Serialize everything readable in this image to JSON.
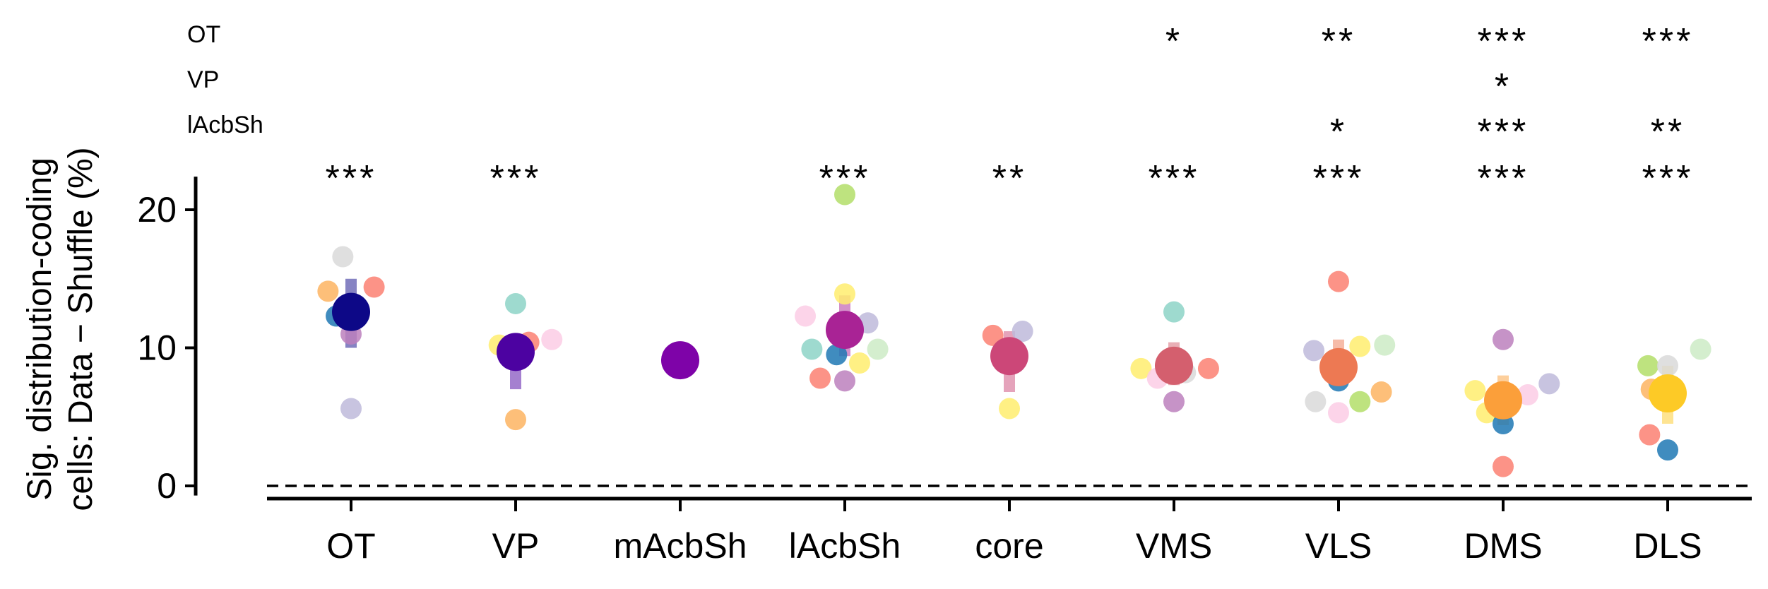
{
  "chart_data": {
    "type": "scatter",
    "categories": [
      "OT",
      "VP",
      "mAcbSh",
      "lAcbSh",
      "core",
      "VMS",
      "VLS",
      "DMS",
      "DLS"
    ],
    "ylabel_line1": "Sig. distribution-coding",
    "ylabel_line2": "cells: Data − Shuffle (%)",
    "ylim": [
      -1,
      22
    ],
    "yticks": [
      0,
      10,
      20
    ],
    "reference_line_y": 0,
    "mean_colors": [
      "#0d0887",
      "#4c02a1",
      "#7e03a8",
      "#a92395",
      "#cc4778",
      "#d45f6e",
      "#ed7953",
      "#fb9f3a",
      "#fdca26"
    ],
    "means": [
      12.6,
      9.7,
      9.1,
      11.3,
      9.4,
      8.7,
      8.6,
      6.2,
      6.7
    ],
    "sems": [
      [
        10.0,
        15.0
      ],
      [
        7.0,
        10.9
      ],
      null,
      [
        9.4,
        13.8
      ],
      [
        6.8,
        11.2
      ],
      [
        7.3,
        10.4
      ],
      [
        7.3,
        10.6
      ],
      [
        4.4,
        8.0
      ],
      [
        4.5,
        8.7
      ]
    ],
    "subject_colors": [
      "#a6cee3",
      "#1f78b4",
      "#fb8072",
      "#fdb462",
      "#b3de69",
      "#fccde5",
      "#bebada",
      "#8dd3c7",
      "#ffed6f",
      "#ccebc5",
      "#d9d9d9",
      "#bc80bd",
      "#e31a1c"
    ],
    "points": [
      [
        [
          -0.05,
          16.6,
          "#d9d9d9"
        ],
        [
          -0.14,
          14.1,
          "#fdb462"
        ],
        [
          0.14,
          14.4,
          "#fb8072"
        ],
        [
          -0.09,
          12.3,
          "#1f78b4"
        ],
        [
          0.0,
          11.0,
          "#bc80bd"
        ],
        [
          0.0,
          5.6,
          "#bebada"
        ]
      ],
      [
        [
          0.0,
          13.2,
          "#8dd3c7"
        ],
        [
          -0.1,
          10.2,
          "#ffed6f"
        ],
        [
          0.08,
          10.4,
          "#fb8072"
        ],
        [
          0.22,
          10.6,
          "#fccde5"
        ],
        [
          0.0,
          4.8,
          "#fdb462"
        ]
      ],
      [],
      [
        [
          0.0,
          21.1,
          "#b3de69"
        ],
        [
          0.0,
          13.9,
          "#ffed6f"
        ],
        [
          -0.24,
          12.3,
          "#fccde5"
        ],
        [
          0.14,
          11.8,
          "#bebada"
        ],
        [
          -0.2,
          9.9,
          "#8dd3c7"
        ],
        [
          0.2,
          9.9,
          "#ccebc5"
        ],
        [
          -0.05,
          9.5,
          "#1f78b4"
        ],
        [
          0.09,
          8.9,
          "#ffed6f"
        ],
        [
          -0.15,
          7.8,
          "#fb8072"
        ],
        [
          0.0,
          7.6,
          "#bc80bd"
        ]
      ],
      [
        [
          -0.1,
          10.9,
          "#fb8072"
        ],
        [
          0.08,
          11.2,
          "#bebada"
        ],
        [
          0.0,
          5.6,
          "#ffed6f"
        ]
      ],
      [
        [
          0.0,
          12.6,
          "#8dd3c7"
        ],
        [
          -0.2,
          8.5,
          "#ffed6f"
        ],
        [
          0.21,
          8.5,
          "#fb8072"
        ],
        [
          -0.1,
          7.8,
          "#fccde5"
        ],
        [
          0.07,
          8.2,
          "#d9d9d9"
        ],
        [
          0.0,
          6.1,
          "#bc80bd"
        ]
      ],
      [
        [
          0.0,
          14.8,
          "#fb8072"
        ],
        [
          -0.15,
          9.8,
          "#bebada"
        ],
        [
          0.13,
          10.1,
          "#ffed6f"
        ],
        [
          0.28,
          10.2,
          "#ccebc5"
        ],
        [
          0.0,
          7.6,
          "#1f78b4"
        ],
        [
          0.26,
          6.8,
          "#fdb462"
        ],
        [
          -0.14,
          6.1,
          "#d9d9d9"
        ],
        [
          0.13,
          6.1,
          "#b3de69"
        ],
        [
          0.0,
          5.3,
          "#fccde5"
        ]
      ],
      [
        [
          0.0,
          10.6,
          "#bc80bd"
        ],
        [
          0.28,
          7.4,
          "#bebada"
        ],
        [
          -0.17,
          6.9,
          "#ffed6f"
        ],
        [
          0.15,
          6.6,
          "#fccde5"
        ],
        [
          -0.1,
          5.3,
          "#ffed6f"
        ],
        [
          0.0,
          4.5,
          "#1f78b4"
        ],
        [
          0.0,
          1.4,
          "#fb8072"
        ]
      ],
      [
        [
          -0.12,
          8.7,
          "#b3de69"
        ],
        [
          0.0,
          8.7,
          "#d9d9d9"
        ],
        [
          0.2,
          9.9,
          "#ccebc5"
        ],
        [
          -0.1,
          7.0,
          "#fdb462"
        ],
        [
          -0.11,
          3.7,
          "#fb8072"
        ],
        [
          0.0,
          2.6,
          "#1f78b4"
        ]
      ]
    ],
    "significance_rows": [
      {
        "label": "OT",
        "stars": [
          "",
          "",
          "",
          "",
          "",
          "*",
          "**",
          "***",
          "***"
        ]
      },
      {
        "label": "VP",
        "stars": [
          "",
          "",
          "",
          "",
          "",
          "",
          "",
          "*",
          ""
        ]
      },
      {
        "label": "lAcbSh",
        "stars": [
          "",
          "",
          "",
          "",
          "",
          "",
          "*",
          "***",
          "**"
        ]
      }
    ],
    "vs_zero_stars": [
      "***",
      "***",
      "",
      "***",
      "**",
      "***",
      "***",
      "***",
      "***"
    ]
  }
}
